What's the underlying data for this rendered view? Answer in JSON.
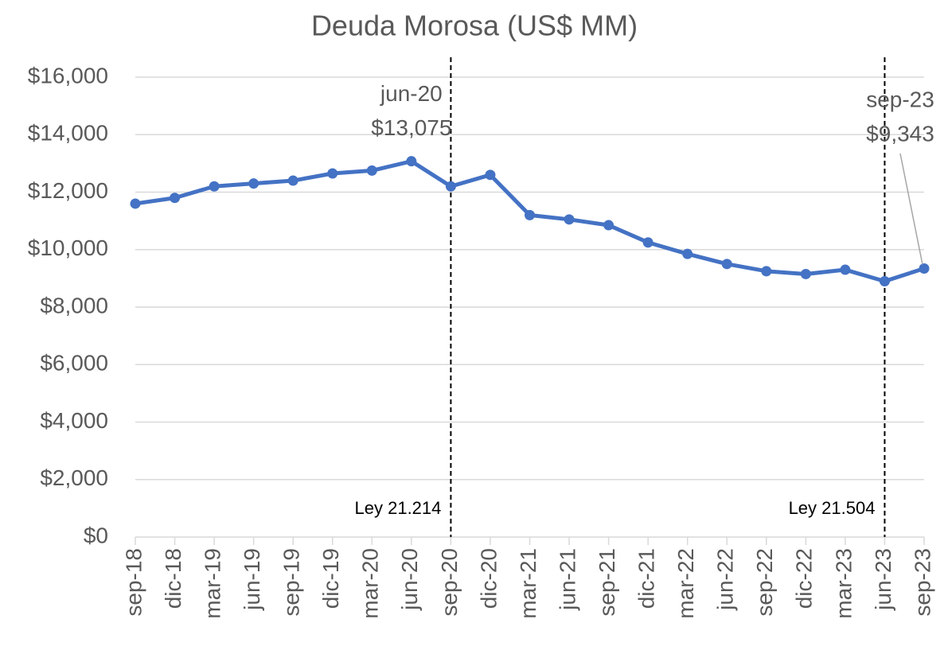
{
  "chart_data": {
    "type": "line",
    "title": "Deuda Morosa (US$ MM)",
    "categories": [
      "sep-18",
      "dic-18",
      "mar-19",
      "jun-19",
      "sep-19",
      "dic-19",
      "mar-20",
      "jun-20",
      "sep-20",
      "dic-20",
      "mar-21",
      "jun-21",
      "sep-21",
      "dic-21",
      "mar-22",
      "jun-22",
      "sep-22",
      "dic-22",
      "mar-23",
      "jun-23",
      "sep-23"
    ],
    "series": [
      {
        "name": "Deuda Morosa",
        "color": "#4472c4",
        "values": [
          11600,
          11800,
          12200,
          12300,
          12400,
          12650,
          12750,
          13075,
          12200,
          12600,
          11200,
          11050,
          10850,
          10250,
          9850,
          9500,
          9250,
          9150,
          9300,
          8900,
          9343
        ],
        "value_labels": [
          null,
          null,
          null,
          null,
          null,
          null,
          null,
          "$13,075",
          null,
          null,
          null,
          null,
          null,
          null,
          null,
          null,
          null,
          null,
          null,
          null,
          "$9,343"
        ]
      }
    ],
    "ylim": [
      0,
      16000
    ],
    "yticks": [
      {
        "value": 0,
        "label": "$0"
      },
      {
        "value": 2000,
        "label": "$2,000"
      },
      {
        "value": 4000,
        "label": "$4,000"
      },
      {
        "value": 6000,
        "label": "$6,000"
      },
      {
        "value": 8000,
        "label": "$8,000"
      },
      {
        "value": 10000,
        "label": "$10,000"
      },
      {
        "value": 12000,
        "label": "$12,000"
      },
      {
        "value": 14000,
        "label": "$14,000"
      },
      {
        "value": 16000,
        "label": "$16,000"
      }
    ],
    "grid": true,
    "vlines": [
      {
        "x": "sep-20",
        "label": "Ley 21.214"
      },
      {
        "x": "jun-23",
        "label": "Ley 21.504"
      }
    ]
  }
}
